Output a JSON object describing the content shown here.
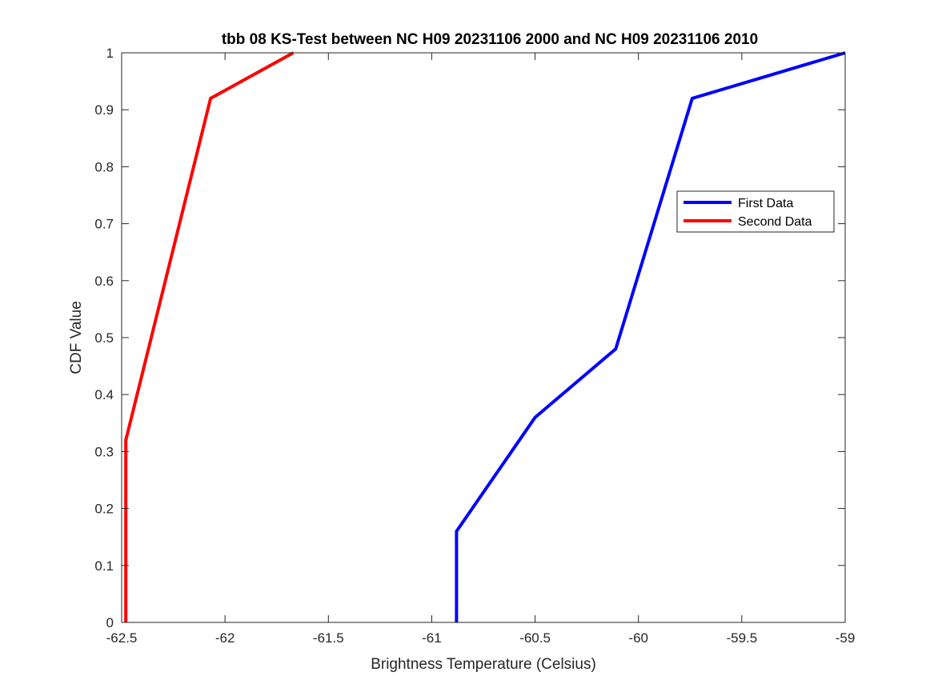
{
  "chart_data": {
    "type": "line",
    "title": "tbb 08 KS-Test between NC H09 20231106 2000 and NC H09 20231106 2010",
    "xlabel": "Brightness Temperature (Celsius)",
    "ylabel": "CDF Value",
    "xlim": [
      -62.5,
      -59
    ],
    "ylim": [
      0,
      1
    ],
    "xticks": [
      -62.5,
      -62,
      -61.5,
      -61,
      -60.5,
      -60,
      -59.5,
      -59
    ],
    "xtick_labels": [
      "-62.5",
      "-62",
      "-61.5",
      "-61",
      "-60.5",
      "-60",
      "-59.5",
      "-59"
    ],
    "yticks": [
      0,
      0.1,
      0.2,
      0.3,
      0.4,
      0.5,
      0.6,
      0.7,
      0.8,
      0.9,
      1
    ],
    "ytick_labels": [
      "0",
      "0.1",
      "0.2",
      "0.3",
      "0.4",
      "0.5",
      "0.6",
      "0.7",
      "0.8",
      "0.9",
      "1"
    ],
    "grid": false,
    "legend_position": "right",
    "series": [
      {
        "name": "First Data",
        "color": "#0000ff",
        "x": [
          -60.88,
          -60.88,
          -60.5,
          -60.11,
          -59.74,
          -59.0
        ],
        "y": [
          0,
          0.16,
          0.36,
          0.48,
          0.92,
          1.0
        ]
      },
      {
        "name": "Second Data",
        "color": "#ff0000",
        "x": [
          -62.48,
          -62.48,
          -62.07,
          -61.67
        ],
        "y": [
          0,
          0.32,
          0.92,
          1.0
        ]
      }
    ]
  }
}
